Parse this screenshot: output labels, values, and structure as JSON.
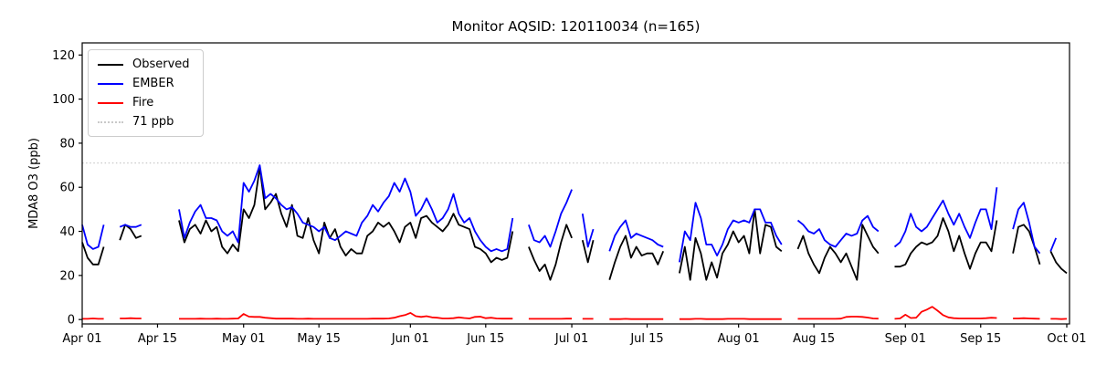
{
  "chart_data": {
    "type": "line",
    "title": "Monitor AQSID: 120110034 (n=165)",
    "ylabel": "MDA8 O3 (ppb)",
    "xlabel": "",
    "ylim": [
      -2,
      125.5
    ],
    "grid": false,
    "legend_position": "upper-left",
    "yticks": [
      0,
      20,
      40,
      60,
      80,
      100,
      120
    ],
    "y_tick_labels": [
      "0",
      "20",
      "40",
      "60",
      "80",
      "100",
      "120"
    ],
    "x_tick_indices": [
      0,
      14,
      30,
      44,
      61,
      75,
      91,
      105,
      122,
      136,
      153,
      167,
      183
    ],
    "x_tick_labels": [
      "Apr 01",
      "Apr 15",
      "May 01",
      "May 15",
      "Jun 01",
      "Jun 15",
      "Jul 01",
      "Jul 15",
      "Aug 01",
      "Aug 15",
      "Sep 01",
      "Sep 15",
      "Oct 01"
    ],
    "threshold": {
      "value": 71,
      "label": "71 ppb",
      "color": "#c9c9c9",
      "style": "dotted"
    },
    "legend": [
      {
        "label": "Observed",
        "color": "#000000",
        "dash": "solid"
      },
      {
        "label": "EMBER",
        "color": "#0000ff",
        "dash": "solid"
      },
      {
        "label": "Fire",
        "color": "#ff0000",
        "dash": "solid"
      },
      {
        "label": "71 ppb",
        "color": "#c9c9c9",
        "dash": "dotted"
      }
    ],
    "series": [
      {
        "name": "Observed",
        "color": "#000000",
        "values": [
          35,
          28,
          25,
          25,
          33,
          null,
          null,
          36,
          43,
          41,
          37,
          38,
          null,
          null,
          null,
          null,
          null,
          null,
          45,
          35,
          41,
          43,
          39,
          45,
          40,
          42,
          33,
          30,
          34,
          31,
          50,
          46,
          52,
          69,
          50,
          53,
          57,
          48,
          42,
          52,
          38,
          37,
          46,
          36,
          30,
          44,
          37,
          41,
          33,
          29,
          32,
          30,
          30,
          38,
          40,
          44,
          42,
          44,
          40,
          35,
          42,
          44,
          37,
          46,
          47,
          44,
          42,
          40,
          43,
          48,
          43,
          42,
          41,
          33,
          32,
          30,
          26,
          28,
          27,
          28,
          40,
          null,
          null,
          33,
          27,
          22,
          25,
          18,
          25,
          35,
          43,
          37,
          null,
          36,
          26,
          36,
          null,
          null,
          18,
          26,
          33,
          38,
          28,
          33,
          29,
          30,
          30,
          25,
          31,
          null,
          null,
          21,
          33,
          18,
          37,
          30,
          18,
          26,
          19,
          30,
          34,
          40,
          35,
          38,
          30,
          50,
          30,
          43,
          42,
          33,
          31,
          null,
          null,
          32,
          38,
          30,
          25,
          21,
          28,
          33,
          30,
          26,
          30,
          24,
          18,
          43,
          38,
          33,
          30,
          null,
          null,
          24,
          24,
          25,
          30,
          33,
          35,
          34,
          35,
          38,
          46,
          40,
          31,
          38,
          30,
          23,
          30,
          35,
          35,
          31,
          45,
          null,
          null,
          30,
          42,
          43,
          40,
          33,
          25,
          null,
          31,
          26,
          23,
          21
        ]
      },
      {
        "name": "EMBER",
        "color": "#0000ff",
        "values": [
          43,
          34,
          32,
          33,
          43,
          null,
          null,
          42,
          43,
          42,
          42,
          43,
          null,
          null,
          null,
          null,
          null,
          null,
          50,
          37,
          44,
          49,
          52,
          46,
          46,
          45,
          40,
          38,
          40,
          35,
          62,
          58,
          63,
          70,
          55,
          57,
          55,
          52,
          50,
          51,
          48,
          44,
          43,
          42,
          40,
          42,
          37,
          36,
          38,
          40,
          39,
          38,
          44,
          47,
          52,
          49,
          53,
          56,
          62,
          58,
          64,
          58,
          47,
          50,
          55,
          50,
          44,
          46,
          50,
          57,
          48,
          44,
          46,
          40,
          36,
          33,
          31,
          32,
          31,
          32,
          46,
          null,
          null,
          43,
          36,
          35,
          38,
          33,
          40,
          48,
          53,
          59,
          null,
          48,
          33,
          41,
          null,
          null,
          31,
          38,
          42,
          45,
          37,
          39,
          38,
          37,
          36,
          34,
          33,
          null,
          null,
          26,
          40,
          36,
          53,
          46,
          34,
          34,
          29,
          34,
          41,
          45,
          44,
          45,
          44,
          50,
          50,
          44,
          44,
          38,
          34,
          null,
          null,
          45,
          43,
          40,
          39,
          41,
          36,
          34,
          33,
          36,
          39,
          38,
          39,
          45,
          47,
          42,
          40,
          null,
          null,
          33,
          35,
          40,
          48,
          42,
          40,
          42,
          46,
          50,
          54,
          48,
          43,
          48,
          42,
          37,
          44,
          50,
          50,
          41,
          60,
          null,
          null,
          41,
          50,
          53,
          44,
          33,
          30,
          null,
          31,
          37,
          null,
          null
        ]
      },
      {
        "name": "Fire",
        "color": "#ff0000",
        "values": [
          0.3,
          0.3,
          0.5,
          0.3,
          0.3,
          null,
          null,
          0.5,
          0.5,
          0.6,
          0.5,
          0.5,
          null,
          null,
          null,
          null,
          null,
          null,
          0.3,
          0.3,
          0.3,
          0.3,
          0.4,
          0.3,
          0.3,
          0.4,
          0.3,
          0.3,
          0.4,
          0.5,
          2.5,
          1.3,
          1.2,
          1.2,
          0.8,
          0.6,
          0.4,
          0.4,
          0.4,
          0.4,
          0.3,
          0.3,
          0.4,
          0.3,
          0.3,
          0.3,
          0.3,
          0.3,
          0.3,
          0.3,
          0.3,
          0.3,
          0.3,
          0.3,
          0.4,
          0.4,
          0.4,
          0.5,
          0.8,
          1.5,
          2.0,
          3.0,
          1.5,
          1.2,
          1.5,
          1.0,
          0.8,
          0.5,
          0.5,
          0.6,
          1.0,
          0.7,
          0.5,
          1.2,
          1.3,
          0.6,
          0.8,
          0.5,
          0.4,
          0.4,
          0.4,
          null,
          null,
          0.3,
          0.3,
          0.3,
          0.3,
          0.3,
          0.3,
          0.3,
          0.4,
          0.4,
          null,
          0.3,
          0.3,
          0.3,
          null,
          null,
          0.2,
          0.2,
          0.2,
          0.3,
          0.2,
          0.2,
          0.2,
          0.2,
          0.2,
          0.2,
          0.2,
          null,
          null,
          0.2,
          0.2,
          0.2,
          0.3,
          0.3,
          0.2,
          0.2,
          0.2,
          0.2,
          0.3,
          0.3,
          0.3,
          0.3,
          0.2,
          0.2,
          0.2,
          0.2,
          0.2,
          0.2,
          0.2,
          null,
          null,
          0.3,
          0.3,
          0.3,
          0.3,
          0.3,
          0.3,
          0.3,
          0.3,
          0.4,
          1.2,
          1.3,
          1.3,
          1.2,
          0.9,
          0.5,
          0.4,
          null,
          null,
          0.3,
          0.5,
          2.2,
          0.7,
          0.8,
          3.5,
          4.5,
          5.8,
          4.0,
          2.0,
          1.0,
          0.6,
          0.5,
          0.5,
          0.5,
          0.5,
          0.5,
          0.6,
          0.8,
          0.7,
          null,
          null,
          0.5,
          0.5,
          0.6,
          0.5,
          0.4,
          0.3,
          null,
          0.3,
          0.3,
          0.2,
          0.3
        ]
      }
    ]
  }
}
